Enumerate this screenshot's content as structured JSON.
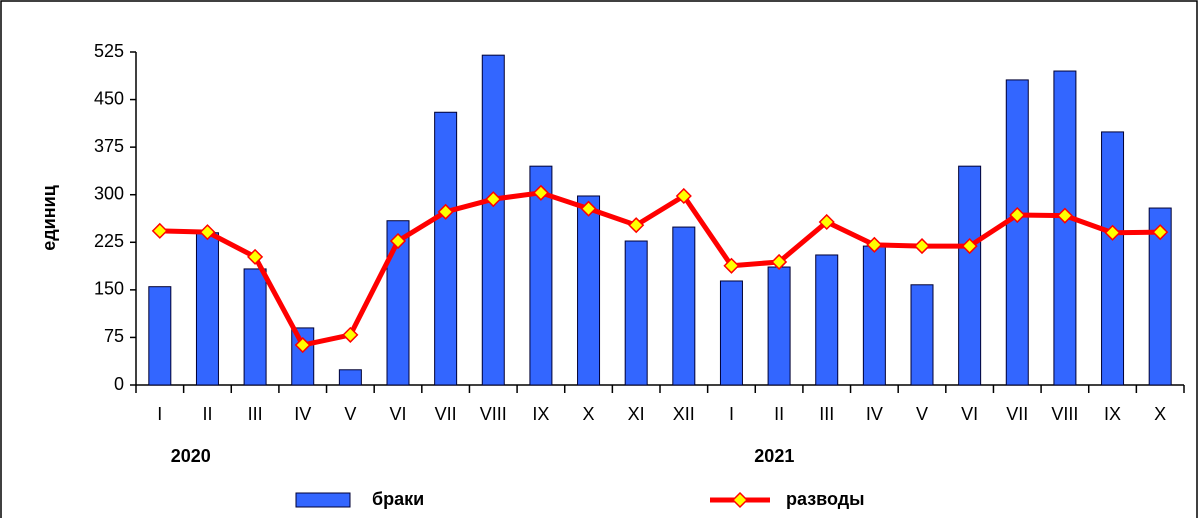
{
  "chart_data": {
    "type": "bar-line",
    "y_label": "единиц",
    "categories": [
      "I",
      "II",
      "III",
      "IV",
      "V",
      "VI",
      "VII",
      "VIII",
      "IX",
      "X",
      "XI",
      "XII",
      "I",
      "II",
      "III",
      "IV",
      "V",
      "VI",
      "VII",
      "VIII",
      "IX",
      "X"
    ],
    "year_labels": [
      "2020",
      "2021"
    ],
    "series": [
      {
        "name": "браки",
        "type": "bar",
        "color": "#3366ff",
        "values": [
          155,
          240,
          183,
          90,
          24,
          259,
          430,
          520,
          345,
          298,
          227,
          249,
          164,
          186,
          205,
          219,
          158,
          345,
          481,
          495,
          399,
          279
        ]
      },
      {
        "name": "разводы",
        "type": "line",
        "color": "#ff0000",
        "marker_color": "#ffff00",
        "values": [
          243,
          241,
          202,
          63,
          79,
          227,
          273,
          293,
          303,
          278,
          252,
          298,
          188,
          194,
          257,
          221,
          219,
          219,
          268,
          267,
          240,
          241
        ]
      }
    ],
    "ylim": [
      0,
      525
    ],
    "yticks": [
      0,
      75,
      150,
      225,
      300,
      375,
      450,
      525
    ],
    "grid": false
  }
}
